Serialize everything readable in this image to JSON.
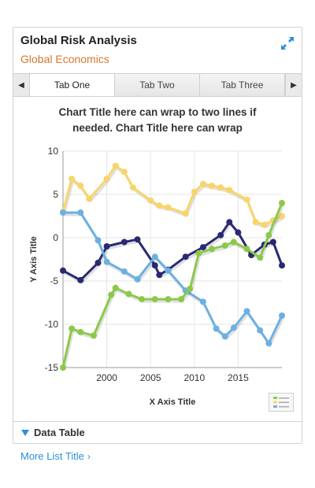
{
  "card": {
    "title": "Global Risk Analysis",
    "subtitle": "Global Economics",
    "expand_icon": "expand-icon"
  },
  "tabs": {
    "items": [
      {
        "label": "Tab One",
        "active": true
      },
      {
        "label": "Tab Two",
        "active": false
      },
      {
        "label": "Tab Three",
        "active": false
      }
    ],
    "prev_icon": "◀",
    "next_icon": "▶"
  },
  "chart_data": {
    "type": "line",
    "title_lines": [
      "Chart Title here can wrap to two lines if",
      "needed. Chart Title here can wrap"
    ],
    "xlabel": "X Axis Title",
    "ylabel": "Y Axis Title",
    "xlim": [
      1995,
      2020
    ],
    "ylim": [
      -15,
      10
    ],
    "x_ticks": [
      2000,
      2005,
      2010,
      2015
    ],
    "y_ticks": [
      10,
      5,
      0,
      -5,
      -10,
      -15
    ],
    "grid": true,
    "legend": "bottom-right",
    "colors": {
      "yellow": "#f7d56a",
      "navy": "#2a2a72",
      "blue": "#6cb0e2",
      "green": "#8cc84b"
    },
    "series": [
      {
        "color": "yellow",
        "x": [
          1995,
          1996,
          1997,
          1998,
          2000,
          2001,
          2002,
          2003,
          2005,
          2006,
          2007,
          2009,
          2010,
          2011,
          2012,
          2013,
          2014,
          2016,
          2017,
          2018,
          2019,
          2020
        ],
        "y": [
          3,
          6.8,
          6,
          4.5,
          6.8,
          8.3,
          7.6,
          5.8,
          4.3,
          3.7,
          3.5,
          2.8,
          5.3,
          6.2,
          6,
          5.8,
          5.5,
          4.4,
          1.8,
          1.5,
          2,
          2.5
        ]
      },
      {
        "color": "navy",
        "x": [
          1995,
          1997,
          1999,
          2000,
          2002,
          2003.5,
          2005.5,
          2006,
          2007,
          2009,
          2011,
          2013,
          2014,
          2015,
          2016.5,
          2018,
          2019,
          2020
        ],
        "y": [
          -3.8,
          -4.9,
          -2.9,
          -1,
          -0.5,
          -0.2,
          -3.2,
          -4.3,
          -3.7,
          -2.2,
          -1.1,
          0.3,
          1.8,
          0.6,
          -2,
          -0.8,
          -0.5,
          -3.2
        ]
      },
      {
        "color": "blue",
        "x": [
          1995,
          1997,
          1999,
          2000,
          2002,
          2003.5,
          2005.5,
          2007,
          2009,
          2011,
          2012.5,
          2013.5,
          2014.5,
          2016,
          2017.5,
          2018.5,
          2020
        ],
        "y": [
          2.9,
          2.9,
          -0.3,
          -2.8,
          -3.9,
          -4.8,
          -2.2,
          -3.8,
          -6.1,
          -7.4,
          -10.5,
          -11.4,
          -10.4,
          -8.5,
          -10.7,
          -12.2,
          -9
        ]
      },
      {
        "color": "green",
        "x": [
          1995,
          1996,
          1997,
          1998.5,
          2000.5,
          2001,
          2002.5,
          2004,
          2005.5,
          2007,
          2008.5,
          2009.5,
          2010.5,
          2012,
          2013.5,
          2014.5,
          2016,
          2017.5,
          2018.5,
          2020
        ],
        "y": [
          -15,
          -10.5,
          -10.9,
          -11.3,
          -6.6,
          -5.8,
          -6.5,
          -7.1,
          -7.1,
          -7.1,
          -7.1,
          -5.9,
          -1.8,
          -1.3,
          -0.9,
          -0.5,
          -1.3,
          -2.3,
          0.3,
          4
        ]
      }
    ]
  },
  "data_table": {
    "label": "Data Table"
  },
  "more_link": {
    "label": "More List Title",
    "chevron": "›"
  }
}
